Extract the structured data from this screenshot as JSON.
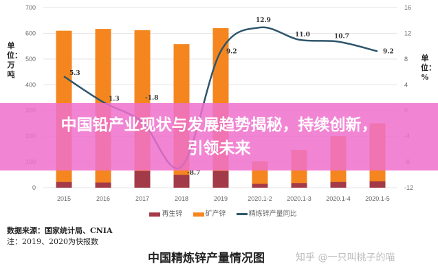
{
  "chart_data": {
    "type": "bar",
    "title": "中国精炼锌产量情况图",
    "categories": [
      "2015",
      "2016",
      "2017",
      "2018",
      "2019",
      "2020.1-2",
      "2020.1-3",
      "2020.1-4",
      "2020.1-5"
    ],
    "series": [
      {
        "name": "再生锌",
        "type": "bar",
        "color": "#a33a48",
        "values": [
          22,
          20,
          65,
          50,
          65,
          15,
          18,
          22,
          25
        ]
      },
      {
        "name": "矿产锌",
        "type": "bar",
        "color": "#f5861f",
        "values": [
          610,
          617,
          612,
          558,
          620,
          103,
          147,
          200,
          250
        ]
      },
      {
        "name": "精炼锌产量同比",
        "type": "line",
        "axis": "right",
        "color": "#2d556b",
        "values": [
          5.3,
          1.3,
          -1.8,
          -8.7,
          9.2,
          12.9,
          11.0,
          10.7,
          9.2
        ]
      }
    ],
    "ylim": [
      0,
      700
    ],
    "yticks": [
      0,
      100,
      200,
      300,
      400,
      500,
      600,
      700
    ],
    "y2lim": [
      -12,
      16
    ],
    "y2ticks": [
      -12,
      -8,
      -4,
      0,
      4,
      8,
      12,
      16
    ],
    "ylabel": "单位：万吨",
    "y2label": "单位：%",
    "grid": true,
    "legend": "bottom"
  },
  "source": "数据来源：国家统计局、CNIA",
  "note": "注：2019、2020为快报数",
  "watermark": "知乎 @一只叫桃子的喵",
  "overlay_title": "中国铅产业现状与发展趋势揭秘，持续创新，引领未来"
}
